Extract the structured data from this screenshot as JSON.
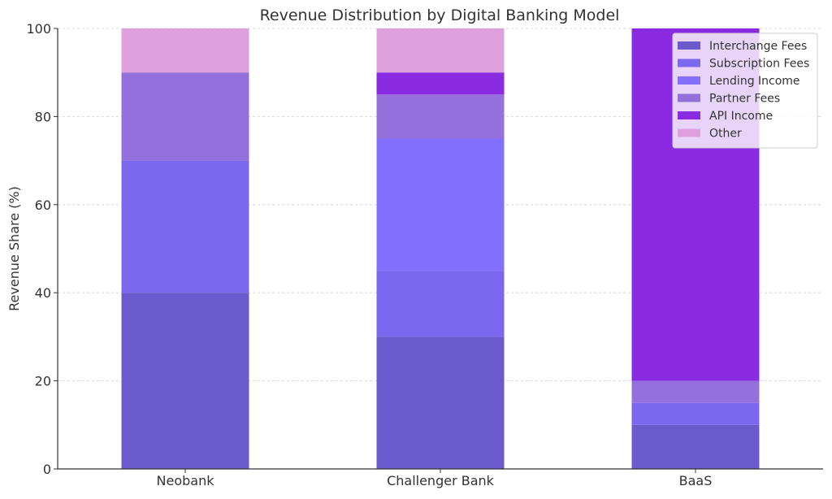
{
  "chart_data": {
    "type": "bar",
    "stacked": true,
    "title": "Revenue Distribution by Digital Banking Model",
    "xlabel": "",
    "ylabel": "Revenue Share (%)",
    "ylim": [
      0,
      100
    ],
    "yticks": [
      0,
      20,
      40,
      60,
      80,
      100
    ],
    "grid": true,
    "legend_position": "top-right",
    "categories": [
      "Neobank",
      "Challenger Bank",
      "BaaS"
    ],
    "series": [
      {
        "name": "Interchange Fees",
        "color": "#6a5acd",
        "values": [
          40,
          30,
          10
        ]
      },
      {
        "name": "Subscription Fees",
        "color": "#7b68ee",
        "values": [
          30,
          15,
          5
        ]
      },
      {
        "name": "Lending Income",
        "color": "#8470ff",
        "values": [
          0,
          30,
          0
        ]
      },
      {
        "name": "Partner Fees",
        "color": "#9370db",
        "values": [
          20,
          10,
          5
        ]
      },
      {
        "name": "API Income",
        "color": "#8a2be2",
        "values": [
          0,
          5,
          80
        ]
      },
      {
        "name": "Other",
        "color": "#dda0dd",
        "values": [
          10,
          10,
          0
        ]
      }
    ]
  }
}
